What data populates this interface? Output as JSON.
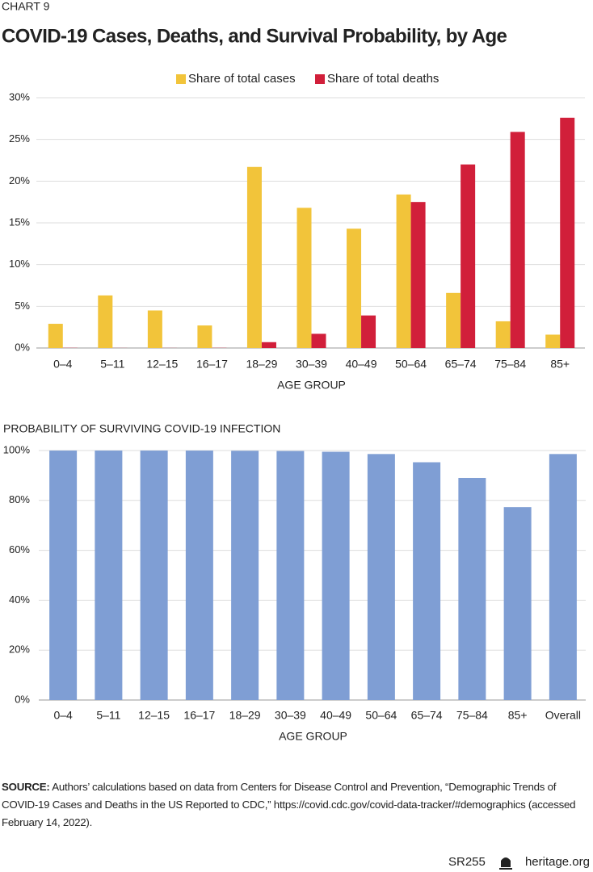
{
  "label": "CHART 9",
  "title": "COVID-19 Cases, Deaths, and Survival Probability, by Age",
  "chart_data": [
    {
      "type": "bar",
      "categories": [
        "0–4",
        "5–11",
        "12–15",
        "16–17",
        "18–29",
        "30–39",
        "40–49",
        "50–64",
        "65–74",
        "75–84",
        "85+"
      ],
      "series": [
        {
          "name": "Share of total cases",
          "color": "#f2c43a",
          "values": [
            2.9,
            6.3,
            4.5,
            2.7,
            21.7,
            16.8,
            14.3,
            18.4,
            6.6,
            3.2,
            1.6
          ]
        },
        {
          "name": "Share of total deaths",
          "color": "#d11f3a",
          "values": [
            0.02,
            0.01,
            0.01,
            0.02,
            0.7,
            1.7,
            3.9,
            17.5,
            22.0,
            25.9,
            27.6
          ]
        }
      ],
      "x_label": "AGE GROUP",
      "ylim": [
        0,
        30
      ],
      "yticks": [
        {
          "value": 0,
          "label": "0%"
        },
        {
          "value": 5,
          "label": "5%"
        },
        {
          "value": 10,
          "label": "10%"
        },
        {
          "value": 15,
          "label": "15%"
        },
        {
          "value": 20,
          "label": "20%"
        },
        {
          "value": 25,
          "label": "25%"
        },
        {
          "value": 30,
          "label": "30%"
        }
      ],
      "grid": true,
      "legend": "top"
    },
    {
      "type": "bar",
      "title": "PROBABILITY OF SURVIVING COVID-19 INFECTION",
      "categories": [
        "0–4",
        "5–11",
        "12–15",
        "16–17",
        "18–29",
        "30–39",
        "40–49",
        "50–64",
        "65–74",
        "75–84",
        "85+",
        "Overall"
      ],
      "values": [
        99.99,
        99.99,
        99.99,
        99.98,
        99.9,
        99.8,
        99.5,
        98.6,
        95.3,
        89.0,
        77.3,
        98.6
      ],
      "color": "#7f9ed4",
      "x_label": "AGE GROUP",
      "ylim": [
        0,
        100
      ],
      "yticks": [
        {
          "value": 0,
          "label": "0%"
        },
        {
          "value": 20,
          "label": "20%"
        },
        {
          "value": 40,
          "label": "40%"
        },
        {
          "value": 60,
          "label": "60%"
        },
        {
          "value": 80,
          "label": "80%"
        },
        {
          "value": 100,
          "label": "100%"
        }
      ],
      "grid": true
    }
  ],
  "source": {
    "label": "SOURCE:",
    "text": "Authors’ calculations based on data from Centers for Disease Control and Prevention, “Demographic Trends of COVID-19 Cases and Deaths in the US Reported to CDC,” https://covid.cdc.gov/covid-data-tracker/#demographics (accessed February 14, 2022)."
  },
  "footer": {
    "code": "SR255",
    "site": "heritage.org"
  }
}
